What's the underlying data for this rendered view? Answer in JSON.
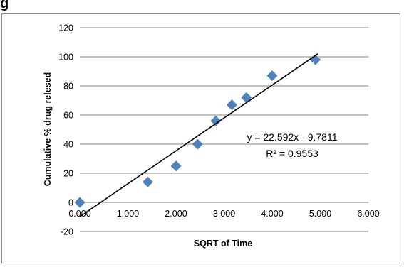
{
  "page": {
    "cropped_label": "g"
  },
  "chart_data": {
    "type": "scatter",
    "title": "",
    "xlabel": "SQRT of Time",
    "ylabel": "Cumulative % drug relesed",
    "xlim": [
      0,
      6
    ],
    "ylim": [
      -20,
      120
    ],
    "x_ticks": [
      0,
      1,
      2,
      3,
      4,
      5,
      6
    ],
    "x_tick_labels": [
      "0.000",
      "1.000",
      "2.000",
      "3.000",
      "4.000",
      "5.000",
      "6.000"
    ],
    "y_ticks": [
      -20,
      0,
      20,
      40,
      60,
      80,
      100,
      120
    ],
    "y_tick_labels": [
      "-20",
      "0",
      "20",
      "40",
      "60",
      "80",
      "100",
      "120"
    ],
    "grid": {
      "horizontal": true,
      "vertical": false
    },
    "marker": "diamond",
    "marker_color": "#4f81bd",
    "trendline_color": "#000000",
    "legend": "none",
    "points": [
      {
        "x": 0.0,
        "y": 0
      },
      {
        "x": 1.414,
        "y": 14
      },
      {
        "x": 2.0,
        "y": 25
      },
      {
        "x": 2.449,
        "y": 40
      },
      {
        "x": 2.828,
        "y": 56
      },
      {
        "x": 3.162,
        "y": 67
      },
      {
        "x": 3.464,
        "y": 72
      },
      {
        "x": 4.0,
        "y": 87
      },
      {
        "x": 4.899,
        "y": 98
      }
    ],
    "trendline": {
      "slope": 22.592,
      "intercept": -9.7811,
      "x_range": [
        0,
        4.95
      ],
      "equation_label": "y = 22.592x - 9.7811",
      "r2_label": "R² = 0.9553"
    }
  }
}
